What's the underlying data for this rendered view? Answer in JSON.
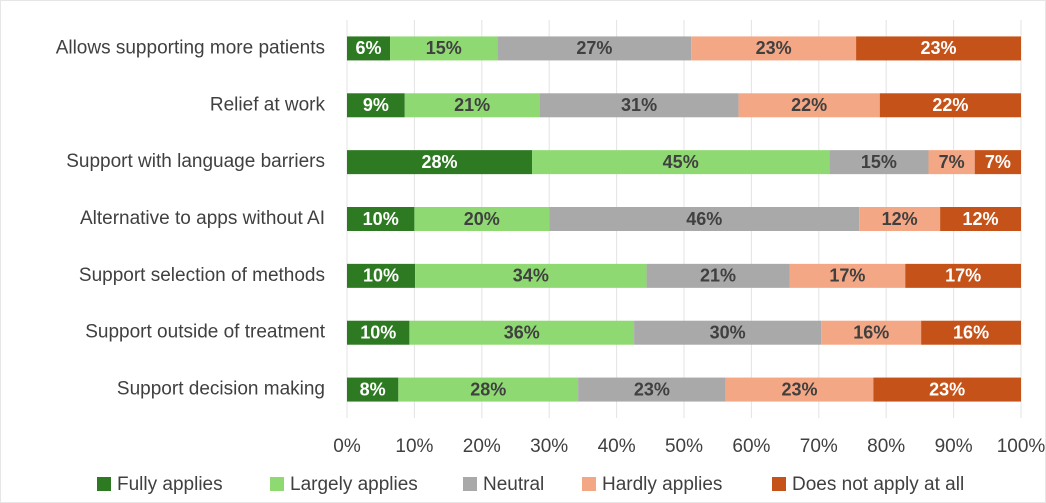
{
  "chart_data": {
    "type": "bar",
    "orientation": "horizontal",
    "stacking": "percent",
    "categories": [
      "Allows supporting more patients",
      "Relief at work",
      "Support with language barriers",
      "Alternative to apps without AI",
      "Support selection of methods",
      "Support outside of treatment",
      "Support decision making"
    ],
    "series": [
      {
        "name": "Fully applies",
        "color": "#2e7a22",
        "values": [
          6,
          9,
          28,
          10,
          10,
          10,
          8
        ],
        "value_labels": [
          "6%",
          "9%",
          "28%",
          "10%",
          "10%",
          "10%",
          "8%"
        ]
      },
      {
        "name": "Largely applies",
        "color": "#8fd973",
        "values": [
          15,
          21,
          45,
          20,
          34,
          36,
          28
        ],
        "value_labels": [
          "15%",
          "21%",
          "45%",
          "20%",
          "34%",
          "36%",
          "28%"
        ]
      },
      {
        "name": "Neutral",
        "color": "#a9a9a9",
        "values": [
          27,
          31,
          15,
          46,
          21,
          30,
          23
        ],
        "value_labels": [
          "27%",
          "31%",
          "15%",
          "46%",
          "21%",
          "30%",
          "23%"
        ]
      },
      {
        "name": "Hardly applies",
        "color": "#f4a784",
        "values": [
          23,
          22,
          7,
          12,
          17,
          16,
          23
        ],
        "value_labels": [
          "23%",
          "22%",
          "7%",
          "12%",
          "17%",
          "16%",
          "23%"
        ]
      },
      {
        "name": "Does not apply at all",
        "color": "#c55219",
        "values": [
          23,
          22,
          7,
          12,
          17,
          16,
          23
        ],
        "value_labels": [
          "23%",
          "22%",
          "7%",
          "12%",
          "17%",
          "16%",
          "23%"
        ]
      }
    ],
    "xlim": [
      0,
      100
    ],
    "xticks": [
      {
        "value": 0,
        "label": "0%"
      },
      {
        "value": 10,
        "label": "10%"
      },
      {
        "value": 20,
        "label": "20%"
      },
      {
        "value": 30,
        "label": "30%"
      },
      {
        "value": 40,
        "label": "40%"
      },
      {
        "value": 50,
        "label": "50%"
      },
      {
        "value": 60,
        "label": "60%"
      },
      {
        "value": 70,
        "label": "70%"
      },
      {
        "value": 80,
        "label": "80%"
      },
      {
        "value": 90,
        "label": "90%"
      },
      {
        "value": 100,
        "label": "100%"
      }
    ],
    "grid": true,
    "legend": "bottom"
  }
}
